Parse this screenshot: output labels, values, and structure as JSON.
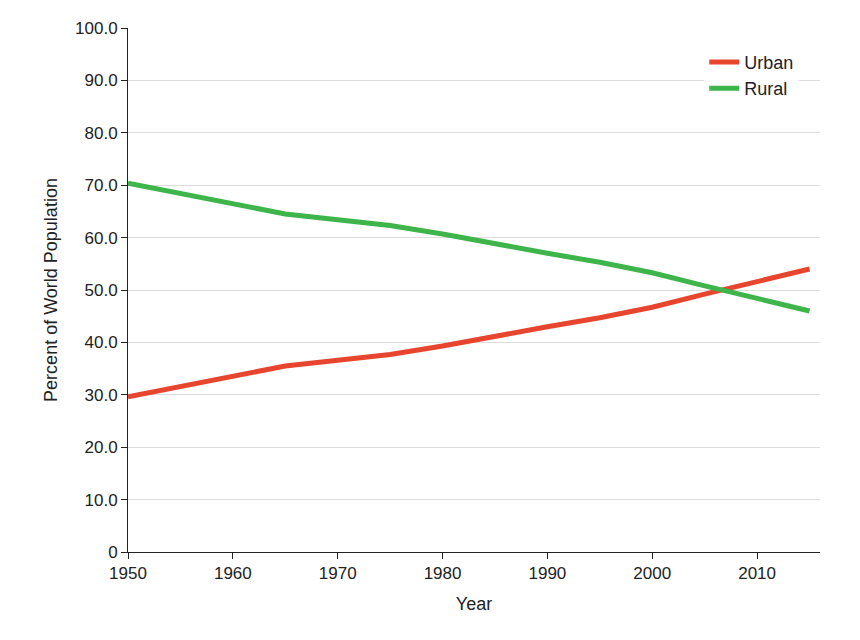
{
  "chart_data": {
    "type": "line",
    "x_label": "Year",
    "y_label": "Percent of World Population",
    "x": [
      1950,
      1955,
      1960,
      1965,
      1970,
      1975,
      1980,
      1985,
      1990,
      1995,
      2000,
      2005,
      2010,
      2015
    ],
    "series": [
      {
        "name": "Urban",
        "color": "#e8452f",
        "values": [
          29.6,
          31.6,
          33.7,
          35.5,
          36.6,
          37.7,
          39.3,
          41.2,
          43.0,
          44.7,
          46.7,
          49.2,
          51.7,
          54.0
        ]
      },
      {
        "name": "Rural",
        "color": "#3db54a",
        "values": [
          70.4,
          68.4,
          66.3,
          64.5,
          63.4,
          62.3,
          60.7,
          58.8,
          57.0,
          55.3,
          53.3,
          50.8,
          48.3,
          46.0
        ]
      }
    ],
    "xlim": [
      1950,
      2016
    ],
    "xticks": [
      1950,
      1960,
      1970,
      1980,
      1990,
      2000,
      2010
    ],
    "ylim": [
      0,
      100
    ],
    "yticks": [
      0,
      {
        "value": 10,
        "label": "10.0"
      },
      {
        "value": 20,
        "label": "20.0"
      },
      {
        "value": 30,
        "label": "30.0"
      },
      {
        "value": 40,
        "label": "40.0"
      },
      {
        "value": 50,
        "label": "50.0"
      },
      {
        "value": 60,
        "label": "60.0"
      },
      {
        "value": 70,
        "label": "70.0"
      },
      {
        "value": 80,
        "label": "80.0"
      },
      {
        "value": 90,
        "label": "90.0"
      },
      {
        "value": 100,
        "label": "100.0"
      }
    ],
    "grid": true,
    "legend": "top right"
  }
}
